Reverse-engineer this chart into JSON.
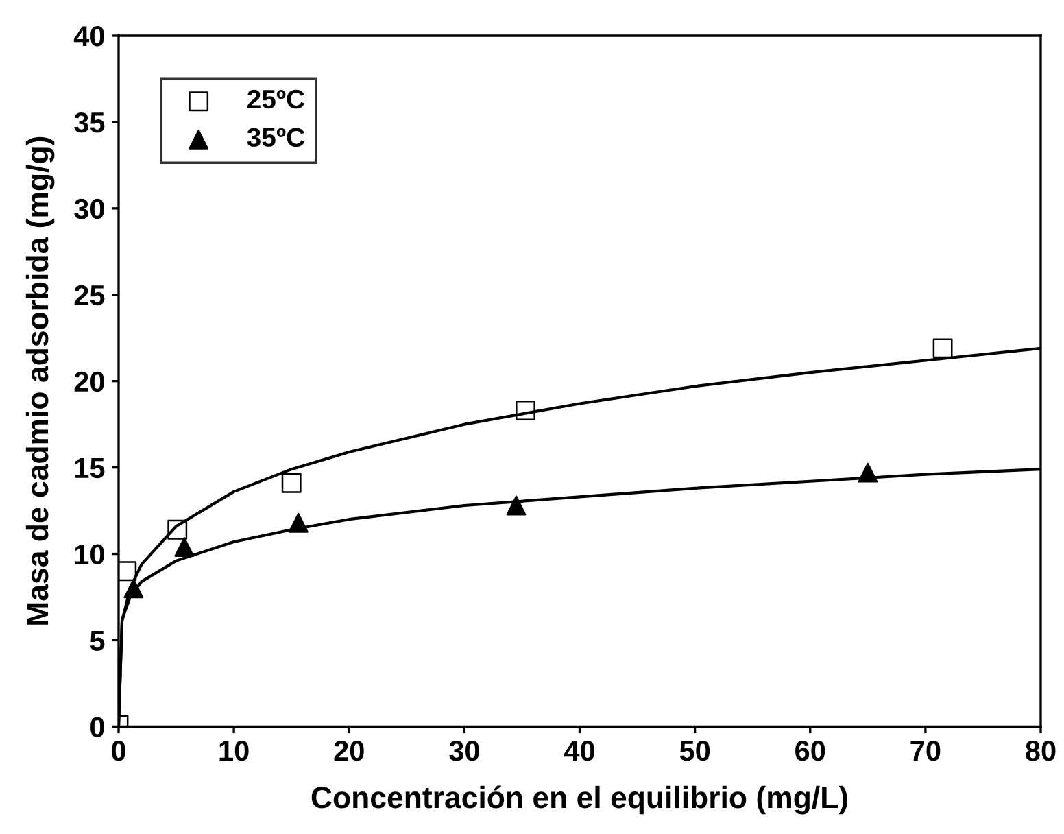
{
  "chart_data": {
    "type": "scatter",
    "xlabel": "Concentración en el equilibrio (mg/L)",
    "ylabel": "Masa de cadmio adsorbida (mg/g)",
    "xlim": [
      0,
      80
    ],
    "ylim": [
      0,
      40
    ],
    "xticks": [
      0,
      10,
      20,
      30,
      40,
      50,
      60,
      70,
      80
    ],
    "yticks": [
      0,
      5,
      10,
      15,
      20,
      25,
      30,
      35,
      40
    ],
    "grid": false,
    "legend": "top left",
    "series": [
      {
        "name": "25ºC",
        "color": "#000000",
        "marker": "square",
        "x": [
          0,
          0.7,
          5.1,
          15,
          35.3,
          71.5
        ],
        "values": [
          0.1,
          9,
          11.4,
          14.1,
          18.3,
          21.9
        ]
      },
      {
        "name": "35ºC",
        "color": "#000000",
        "marker": "triangle",
        "x": [
          1.3,
          5.7,
          15.6,
          34.5,
          65
        ],
        "values": [
          8,
          10.4,
          11.8,
          12.8,
          14.7
        ]
      },
      {
        "type": "line",
        "color": "#000000",
        "marker": "none",
        "x": [
          0,
          0.3,
          1,
          2,
          5,
          10,
          15,
          20,
          30,
          40,
          50,
          60,
          70,
          80
        ],
        "values": [
          0,
          6.1,
          8,
          9.4,
          11.6,
          13.6,
          14.9,
          15.9,
          17.5,
          18.7,
          19.7,
          20.5,
          21.2,
          21.9
        ]
      },
      {
        "type": "line",
        "color": "#000000",
        "marker": "none",
        "x": [
          0,
          0.3,
          1,
          2,
          5,
          10,
          15,
          20,
          30,
          40,
          50,
          60,
          70,
          80
        ],
        "values": [
          0,
          6.2,
          7.5,
          8.4,
          9.6,
          10.7,
          11.4,
          12,
          12.8,
          13.3,
          13.8,
          14.2,
          14.6,
          14.9
        ]
      }
    ]
  }
}
